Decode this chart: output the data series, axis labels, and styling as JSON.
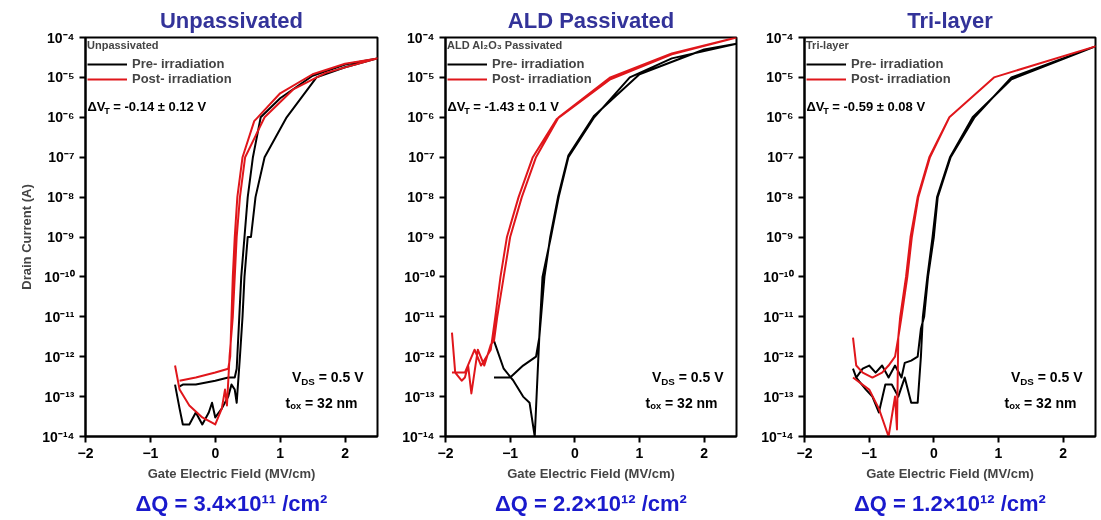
{
  "chart_data": [
    {
      "type": "line",
      "title": "Unpassivated",
      "xlabel": "Gate Electric Field (MV/cm)",
      "ylabel": "Drain Current (A)",
      "legend_title": "Unpassivated",
      "legend": "top left",
      "log": "y",
      "xlim": [
        -2,
        2.5
      ],
      "xticks": [
        -2,
        -1,
        0,
        1,
        2
      ],
      "ylim": [
        1e-14,
        0.0001
      ],
      "yticks": [
        {
          "value": 1e-14,
          "label": "10⁻¹⁴"
        },
        {
          "value": 1e-13,
          "label": "10⁻¹³"
        },
        {
          "value": 1e-12,
          "label": "10⁻¹²"
        },
        {
          "value": 1e-11,
          "label": "10⁻¹¹"
        },
        {
          "value": 1e-10,
          "label": "10⁻¹⁰"
        },
        {
          "value": 1e-09,
          "label": "10⁻⁹"
        },
        {
          "value": 1e-08,
          "label": "10⁻⁸"
        },
        {
          "value": 1e-07,
          "label": "10⁻⁷"
        },
        {
          "value": 1e-06,
          "label": "10⁻⁶"
        },
        {
          "value": 1e-05,
          "label": "10⁻⁵"
        },
        {
          "value": 0.0001,
          "label": "10⁻⁴"
        }
      ],
      "annotations": [
        "ΔV$_{T}$ = -0.14 ± 0.12 V",
        "V$_{DS}$ = 0.5 V",
        "tₒₓ = 32 nm",
        "ΔQ = 3.4×10¹¹ /cm²"
      ],
      "series": [
        {
          "name": "Pre- irradiation",
          "color": "#000000",
          "x": [
            -0.62,
            -0.55,
            -0.5,
            -0.4,
            -0.3,
            -0.2,
            -0.1,
            -0.05,
            0,
            0.1,
            0.2,
            0.25,
            0.3,
            0.33,
            0.38,
            0.42,
            0.45,
            0.5,
            0.55,
            0.62,
            0.76,
            1.1,
            1.56,
            2.0,
            2.5,
            2.0,
            1.5,
            1.0,
            0.7,
            0.58,
            0.5,
            0.45,
            0.4,
            0.37,
            0.33,
            0.3,
            0.2,
            0,
            -0.3,
            -0.5,
            -0.55
          ],
          "values": [
            2e-13,
            5e-14,
            2e-14,
            2e-14,
            4e-14,
            2e-14,
            4e-14,
            7e-14,
            3e-14,
            5e-14,
            1e-13,
            2e-13,
            1.5e-13,
            7e-14,
            1e-12,
            1e-11,
            1e-10,
            1e-09,
            1e-09,
            1e-08,
            1e-07,
            1e-06,
            1e-05,
            1.8e-05,
            3e-05,
            2.1e-05,
            1.1e-05,
            3e-06,
            1e-06,
            1e-07,
            1e-08,
            1e-09,
            1e-10,
            1e-11,
            5e-13,
            3e-13,
            3e-13,
            2.5e-13,
            2e-13,
            2e-13,
            1.8e-13
          ]
        },
        {
          "name": "Post- irradiation",
          "color": "#e0161b",
          "x": [
            -0.62,
            -0.55,
            -0.4,
            -0.2,
            0,
            0.1,
            0.15,
            0.18,
            0.22,
            0.27,
            0.3,
            0.33,
            0.38,
            0.46,
            0.76,
            1.2,
            1.7,
            2.5,
            2.0,
            1.5,
            1.0,
            0.6,
            0.42,
            0.34,
            0.3,
            0.27,
            0.25,
            0.23,
            0.2,
            0,
            -0.3,
            -0.55
          ],
          "values": [
            6e-13,
            1.5e-13,
            6e-14,
            3e-14,
            2e-14,
            5e-14,
            1.5e-13,
            6e-14,
            1e-12,
            1e-11,
            1e-10,
            1e-09,
            1e-08,
            1e-07,
            1e-06,
            5e-06,
            1.3e-05,
            3e-05,
            2.2e-05,
            1.2e-05,
            4e-06,
            8e-07,
            1e-07,
            1e-08,
            1e-09,
            1e-10,
            1e-11,
            1e-12,
            5e-13,
            4e-13,
            3e-13,
            2.5e-13
          ]
        }
      ]
    },
    {
      "type": "line",
      "title": "ALD Passivated",
      "xlabel": "Gate Electric Field (MV/cm)",
      "legend_title": "ALD Al₂O₃ Passivated",
      "legend": "top left",
      "log": "y",
      "xlim": [
        -2,
        2.5
      ],
      "xticks": [
        -2,
        -1,
        0,
        1,
        2
      ],
      "ylim": [
        1e-14,
        0.0001
      ],
      "yticks": [
        {
          "value": 1e-14,
          "label": "10⁻¹⁴"
        },
        {
          "value": 1e-13,
          "label": "10⁻¹³"
        },
        {
          "value": 1e-12,
          "label": "10⁻¹²"
        },
        {
          "value": 1e-11,
          "label": "10⁻¹¹"
        },
        {
          "value": 1e-10,
          "label": "10⁻¹⁰"
        },
        {
          "value": 1e-09,
          "label": "10⁻⁹"
        },
        {
          "value": 1e-08,
          "label": "10⁻⁸"
        },
        {
          "value": 1e-07,
          "label": "10⁻⁷"
        },
        {
          "value": 1e-06,
          "label": "10⁻⁶"
        },
        {
          "value": 1e-05,
          "label": "10⁻⁵"
        },
        {
          "value": 0.0001,
          "label": "10⁻⁴"
        }
      ],
      "annotations": [
        "ΔV$_{T}$ = -1.43 ± 0.1 V",
        "V$_{DS}$ = 0.5 V",
        "tₒₓ = 32 nm",
        "ΔQ = 2.2×10¹² /cm²"
      ],
      "series": [
        {
          "name": "Pre- irradiation",
          "color": "#000000",
          "x": [
            -1.25,
            -1.1,
            -0.95,
            -0.8,
            -0.7,
            -0.62,
            -0.55,
            -0.5,
            -0.37,
            -0.25,
            -0.1,
            0.3,
            0.85,
            1.5,
            2.5,
            2.0,
            1.0,
            0.3,
            -0.1,
            -0.26,
            -0.38,
            -0.47,
            -0.55,
            -0.6,
            -0.8,
            -1.0,
            -1.25
          ],
          "values": [
            2.5e-12,
            5e-13,
            2.5e-13,
            1e-13,
            7e-14,
            1e-14,
            3e-12,
            1e-10,
            1e-09,
            1e-08,
            1e-07,
            1e-06,
            1e-05,
            3e-05,
            7e-05,
            5e-05,
            1.2e-05,
            1.1e-06,
            1.1e-07,
            1e-08,
            1e-09,
            1e-10,
            3e-12,
            1e-12,
            6e-13,
            3e-13,
            3e-13
          ]
        },
        {
          "name": "Post- irradiation",
          "color": "#e0161b",
          "x": [
            -1.9,
            -1.85,
            -1.75,
            -1.7,
            -1.65,
            -1.6,
            -1.5,
            -1.4,
            -1.3,
            -1.25,
            -1.2,
            -1.1,
            -1.0,
            -0.82,
            -0.6,
            -0.25,
            0.55,
            1.5,
            2.5,
            1.5,
            0.55,
            -0.28,
            -0.65,
            -0.87,
            -1.05,
            -1.15,
            -1.23,
            -1.3,
            -1.45,
            -1.55,
            -1.7,
            -1.9
          ],
          "values": [
            4e-12,
            4e-13,
            2.5e-13,
            3e-13,
            6e-13,
            1.2e-13,
            1.5e-12,
            6e-13,
            2e-12,
            2.5e-12,
            1e-11,
            1e-10,
            1e-09,
            1e-08,
            1e-07,
            1e-06,
            1e-05,
            4e-05,
            0.0001,
            3.8e-05,
            9e-06,
            9e-07,
            1e-07,
            1e-08,
            1e-09,
            1e-10,
            1e-11,
            1.5e-12,
            6e-13,
            1.5e-12,
            4e-13,
            4e-13
          ]
        }
      ]
    },
    {
      "type": "line",
      "title": "Tri-layer",
      "xlabel": "Gate Electric Field (MV/cm)",
      "legend_title": "Tri-layer",
      "legend": "top left",
      "log": "y",
      "xlim": [
        -2,
        2.5
      ],
      "xticks": [
        -2,
        -1,
        0,
        1,
        2
      ],
      "ylim": [
        1e-14,
        0.0001
      ],
      "yticks": [
        {
          "value": 1e-14,
          "label": "10⁻¹⁴"
        },
        {
          "value": 1e-13,
          "label": "10⁻¹³"
        },
        {
          "value": 1e-12,
          "label": "10⁻¹²"
        },
        {
          "value": 1e-11,
          "label": "10⁻¹¹"
        },
        {
          "value": 1e-10,
          "label": "10⁻¹⁰"
        },
        {
          "value": 1e-09,
          "label": "10⁻⁹"
        },
        {
          "value": 1e-08,
          "label": "10⁻⁸"
        },
        {
          "value": 1e-07,
          "label": "10⁻⁷"
        },
        {
          "value": 1e-06,
          "label": "10⁻⁶"
        },
        {
          "value": 1e-05,
          "label": "10⁻⁵"
        },
        {
          "value": 0.0001,
          "label": "10⁻⁴"
        }
      ],
      "annotations": [
        "ΔV$_{T}$ = -0.59 ± 0.08 V",
        "V$_{DS}$ = 0.5 V",
        "tₒₓ = 32 nm",
        "ΔQ = 1.2×10¹² /cm²"
      ],
      "series": [
        {
          "name": "Pre- irradiation",
          "color": "#000000",
          "x": [
            -1.25,
            -1.2,
            -1.1,
            -1.0,
            -0.9,
            -0.8,
            -0.7,
            -0.6,
            -0.5,
            -0.45,
            -0.35,
            -0.25,
            -0.2,
            -0.15,
            -0.09,
            0,
            0.06,
            0.26,
            0.63,
            1.2,
            2.5,
            1.2,
            0.6,
            0.25,
            0.05,
            -0.02,
            -0.1,
            -0.17,
            -0.2,
            -0.25,
            -0.35,
            -0.45,
            -0.55,
            -0.65,
            -0.75,
            -0.85,
            -0.95,
            -1.05,
            -1.2
          ],
          "values": [
            5e-13,
            3e-13,
            5e-13,
            6e-13,
            4e-13,
            6e-13,
            3e-13,
            6e-13,
            3e-13,
            7e-13,
            8e-13,
            1e-12,
            5e-12,
            1e-11,
            1e-10,
            1e-09,
            1e-08,
            1e-07,
            1e-06,
            1e-05,
            6e-05,
            9e-06,
            1e-06,
            1e-07,
            1e-08,
            1e-09,
            1e-10,
            1e-11,
            1e-12,
            7e-14,
            7e-14,
            3e-13,
            1e-13,
            2e-13,
            2e-13,
            4e-14,
            1e-13,
            1.5e-13,
            3e-13
          ]
        },
        {
          "name": "Post- irradiation",
          "color": "#e0161b",
          "x": [
            -1.25,
            -1.2,
            -1.1,
            -0.95,
            -0.8,
            -0.7,
            -0.6,
            -0.55,
            -0.5,
            -0.41,
            -0.34,
            -0.24,
            -0.06,
            0.24,
            0.93,
            2.5,
            0.93,
            0.24,
            -0.07,
            -0.25,
            -0.36,
            -0.43,
            -0.52,
            -0.55,
            -0.57,
            -0.6,
            -0.7,
            -0.85,
            -1.0,
            -1.25
          ],
          "values": [
            3e-12,
            6e-13,
            4e-13,
            3e-13,
            4e-13,
            6e-13,
            1e-12,
            3e-12,
            1e-11,
            1e-10,
            1e-09,
            1e-08,
            1e-07,
            1e-06,
            1e-05,
            6e-05,
            1e-05,
            1e-06,
            1e-07,
            1e-08,
            1e-09,
            1e-10,
            1e-11,
            3e-12,
            1.5e-14,
            1e-13,
            1e-14,
            5e-14,
            1.5e-13,
            3e-13
          ]
        }
      ]
    }
  ]
}
